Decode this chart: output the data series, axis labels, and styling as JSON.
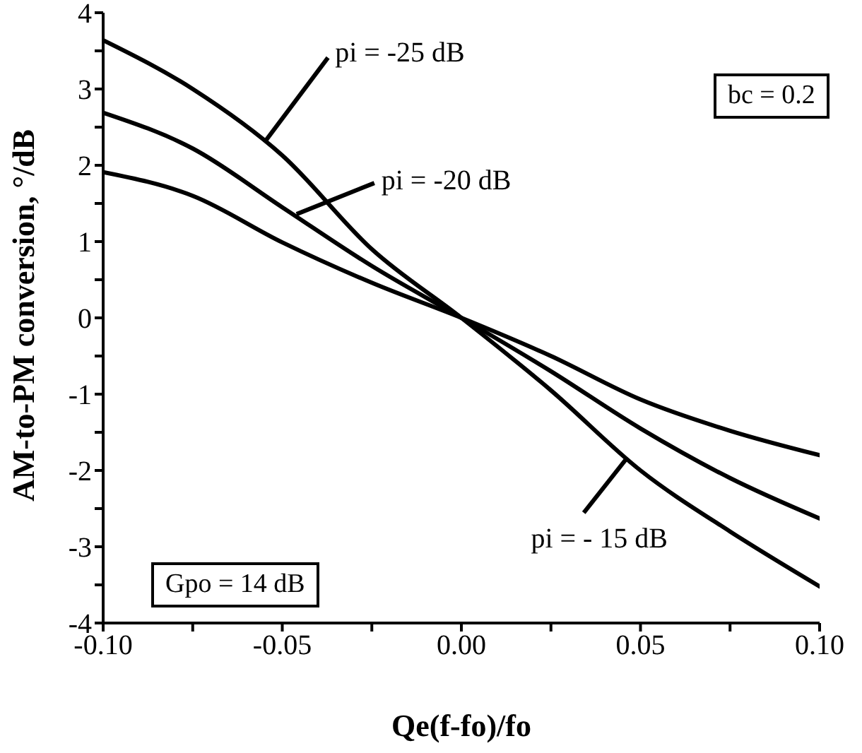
{
  "chart_data": {
    "type": "line",
    "xlabel": "Qe(f-fo)/fo",
    "ylabel": "AM-to-PM  conversion, °/dB",
    "x": [
      -0.1,
      -0.075,
      -0.05,
      -0.025,
      0,
      0.025,
      0.05,
      0.075,
      0.1
    ],
    "series": [
      {
        "color": "#000000",
        "values": [
          3.64,
          3.0,
          2.13,
          0.9,
          0,
          -0.95,
          -2.0,
          -2.8,
          -3.52
        ]
      },
      {
        "color": "#000000",
        "values": [
          2.69,
          2.22,
          1.45,
          0.68,
          0,
          -0.7,
          -1.45,
          -2.1,
          -2.63
        ]
      },
      {
        "color": "#000000",
        "values": [
          1.91,
          1.6,
          0.99,
          0.46,
          0,
          -0.5,
          -1.07,
          -1.48,
          -1.8
        ]
      }
    ],
    "xlim": [
      -0.1,
      0.1
    ],
    "xticks": [
      {
        "value": -0.1,
        "label": "-0.10"
      },
      {
        "value": -0.075,
        "label": null
      },
      -0.05,
      {
        "value": -0.025,
        "label": null
      },
      {
        "value": 0,
        "label": "0.00"
      },
      {
        "value": 0.025,
        "label": null
      },
      0.05,
      {
        "value": 0.075,
        "label": null
      },
      {
        "value": 0.1,
        "label": "0.10"
      }
    ],
    "ylim": [
      -4,
      4
    ],
    "yticks": [
      -4,
      {
        "value": -3.5,
        "label": null
      },
      -3,
      {
        "value": -2.5,
        "label": null
      },
      -2,
      {
        "value": -1.5,
        "label": null
      },
      -1,
      {
        "value": -0.5,
        "label": null
      },
      0,
      {
        "value": 0.5,
        "label": null
      },
      1,
      {
        "value": 1.5,
        "label": null
      },
      2,
      {
        "value": 2.5,
        "label": null
      },
      3,
      {
        "value": 3.5,
        "label": null
      },
      4
    ],
    "annotations": [
      {
        "text": "pi = -25 dB",
        "x": -0.055,
        "y": 2.3
      },
      {
        "text": "pi = -20 dB",
        "x": -0.046,
        "y": 1.36
      },
      {
        "text": "pi = - 15 dB",
        "x": 0.046,
        "y": -1.85
      },
      "bc = 0.2",
      "Gpo = 14 dB"
    ],
    "grid": false,
    "legend": false,
    "marker": "none",
    "line_style": "solid"
  }
}
